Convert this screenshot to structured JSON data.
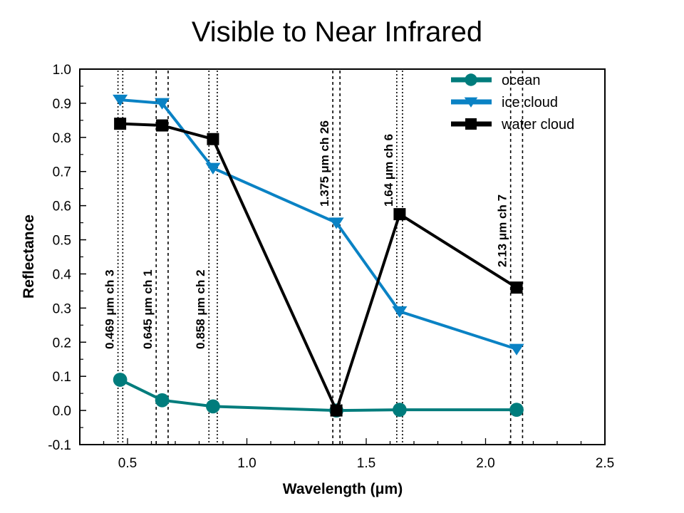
{
  "chart_data": {
    "type": "line",
    "title": "Visible to Near Infrared",
    "xlabel": "Wavelength (μm)",
    "ylabel": "Reflectance",
    "xlim": [
      0.3,
      2.5
    ],
    "ylim": [
      -0.1,
      1.0
    ],
    "x_ticks": [
      0.5,
      1.0,
      1.5,
      2.0,
      2.5
    ],
    "x_tick_labels": [
      "0.5",
      "1.0",
      "1.5",
      "2.0",
      "2.5"
    ],
    "x_minor_step": 0.1,
    "y_ticks": [
      -0.1,
      0.0,
      0.1,
      0.2,
      0.3,
      0.4,
      0.5,
      0.6,
      0.7,
      0.8,
      0.9,
      1.0
    ],
    "y_tick_labels": [
      "-0.1",
      "0.0",
      "0.1",
      "0.2",
      "0.3",
      "0.4",
      "0.5",
      "0.6",
      "0.7",
      "0.8",
      "0.9",
      "1.0"
    ],
    "y_minor_step": 0.05,
    "grid": false,
    "legend_position": "top-right",
    "x": [
      0.469,
      0.645,
      0.858,
      1.375,
      1.64,
      2.13
    ],
    "series": [
      {
        "name": "ocean",
        "color": "#007c7c",
        "marker": "circle",
        "values": [
          0.09,
          0.03,
          0.012,
          0.0,
          0.002,
          0.002
        ]
      },
      {
        "name": "ice cloud",
        "color": "#0a82c4",
        "marker": "triangle-down",
        "values": [
          0.91,
          0.9,
          0.71,
          0.55,
          0.29,
          0.18
        ]
      },
      {
        "name": "water cloud",
        "color": "#000000",
        "marker": "square",
        "values": [
          0.84,
          0.835,
          0.795,
          0.0,
          0.575,
          0.36
        ]
      }
    ],
    "annotations": [
      {
        "text": "0.469 μm  ch 3",
        "x": 0.469,
        "band": [
          0.46,
          0.48
        ],
        "style": "dotted"
      },
      {
        "text": "0.645 μm ch 1",
        "x": 0.645,
        "band": [
          0.62,
          0.67
        ],
        "style": "dashed"
      },
      {
        "text": "0.858 μm  ch 2",
        "x": 0.858,
        "band": [
          0.841,
          0.876
        ],
        "style": "dotted"
      },
      {
        "text": "1.375 μm  ch 26",
        "x": 1.375,
        "band": [
          1.36,
          1.39
        ],
        "style": "dashed"
      },
      {
        "text": "1.64 μm  ch 6",
        "x": 1.64,
        "band": [
          1.628,
          1.652
        ],
        "style": "dotted"
      },
      {
        "text": "2.13 μm  ch 7",
        "x": 2.13,
        "band": [
          2.105,
          2.155
        ],
        "style": "dashed"
      }
    ]
  }
}
